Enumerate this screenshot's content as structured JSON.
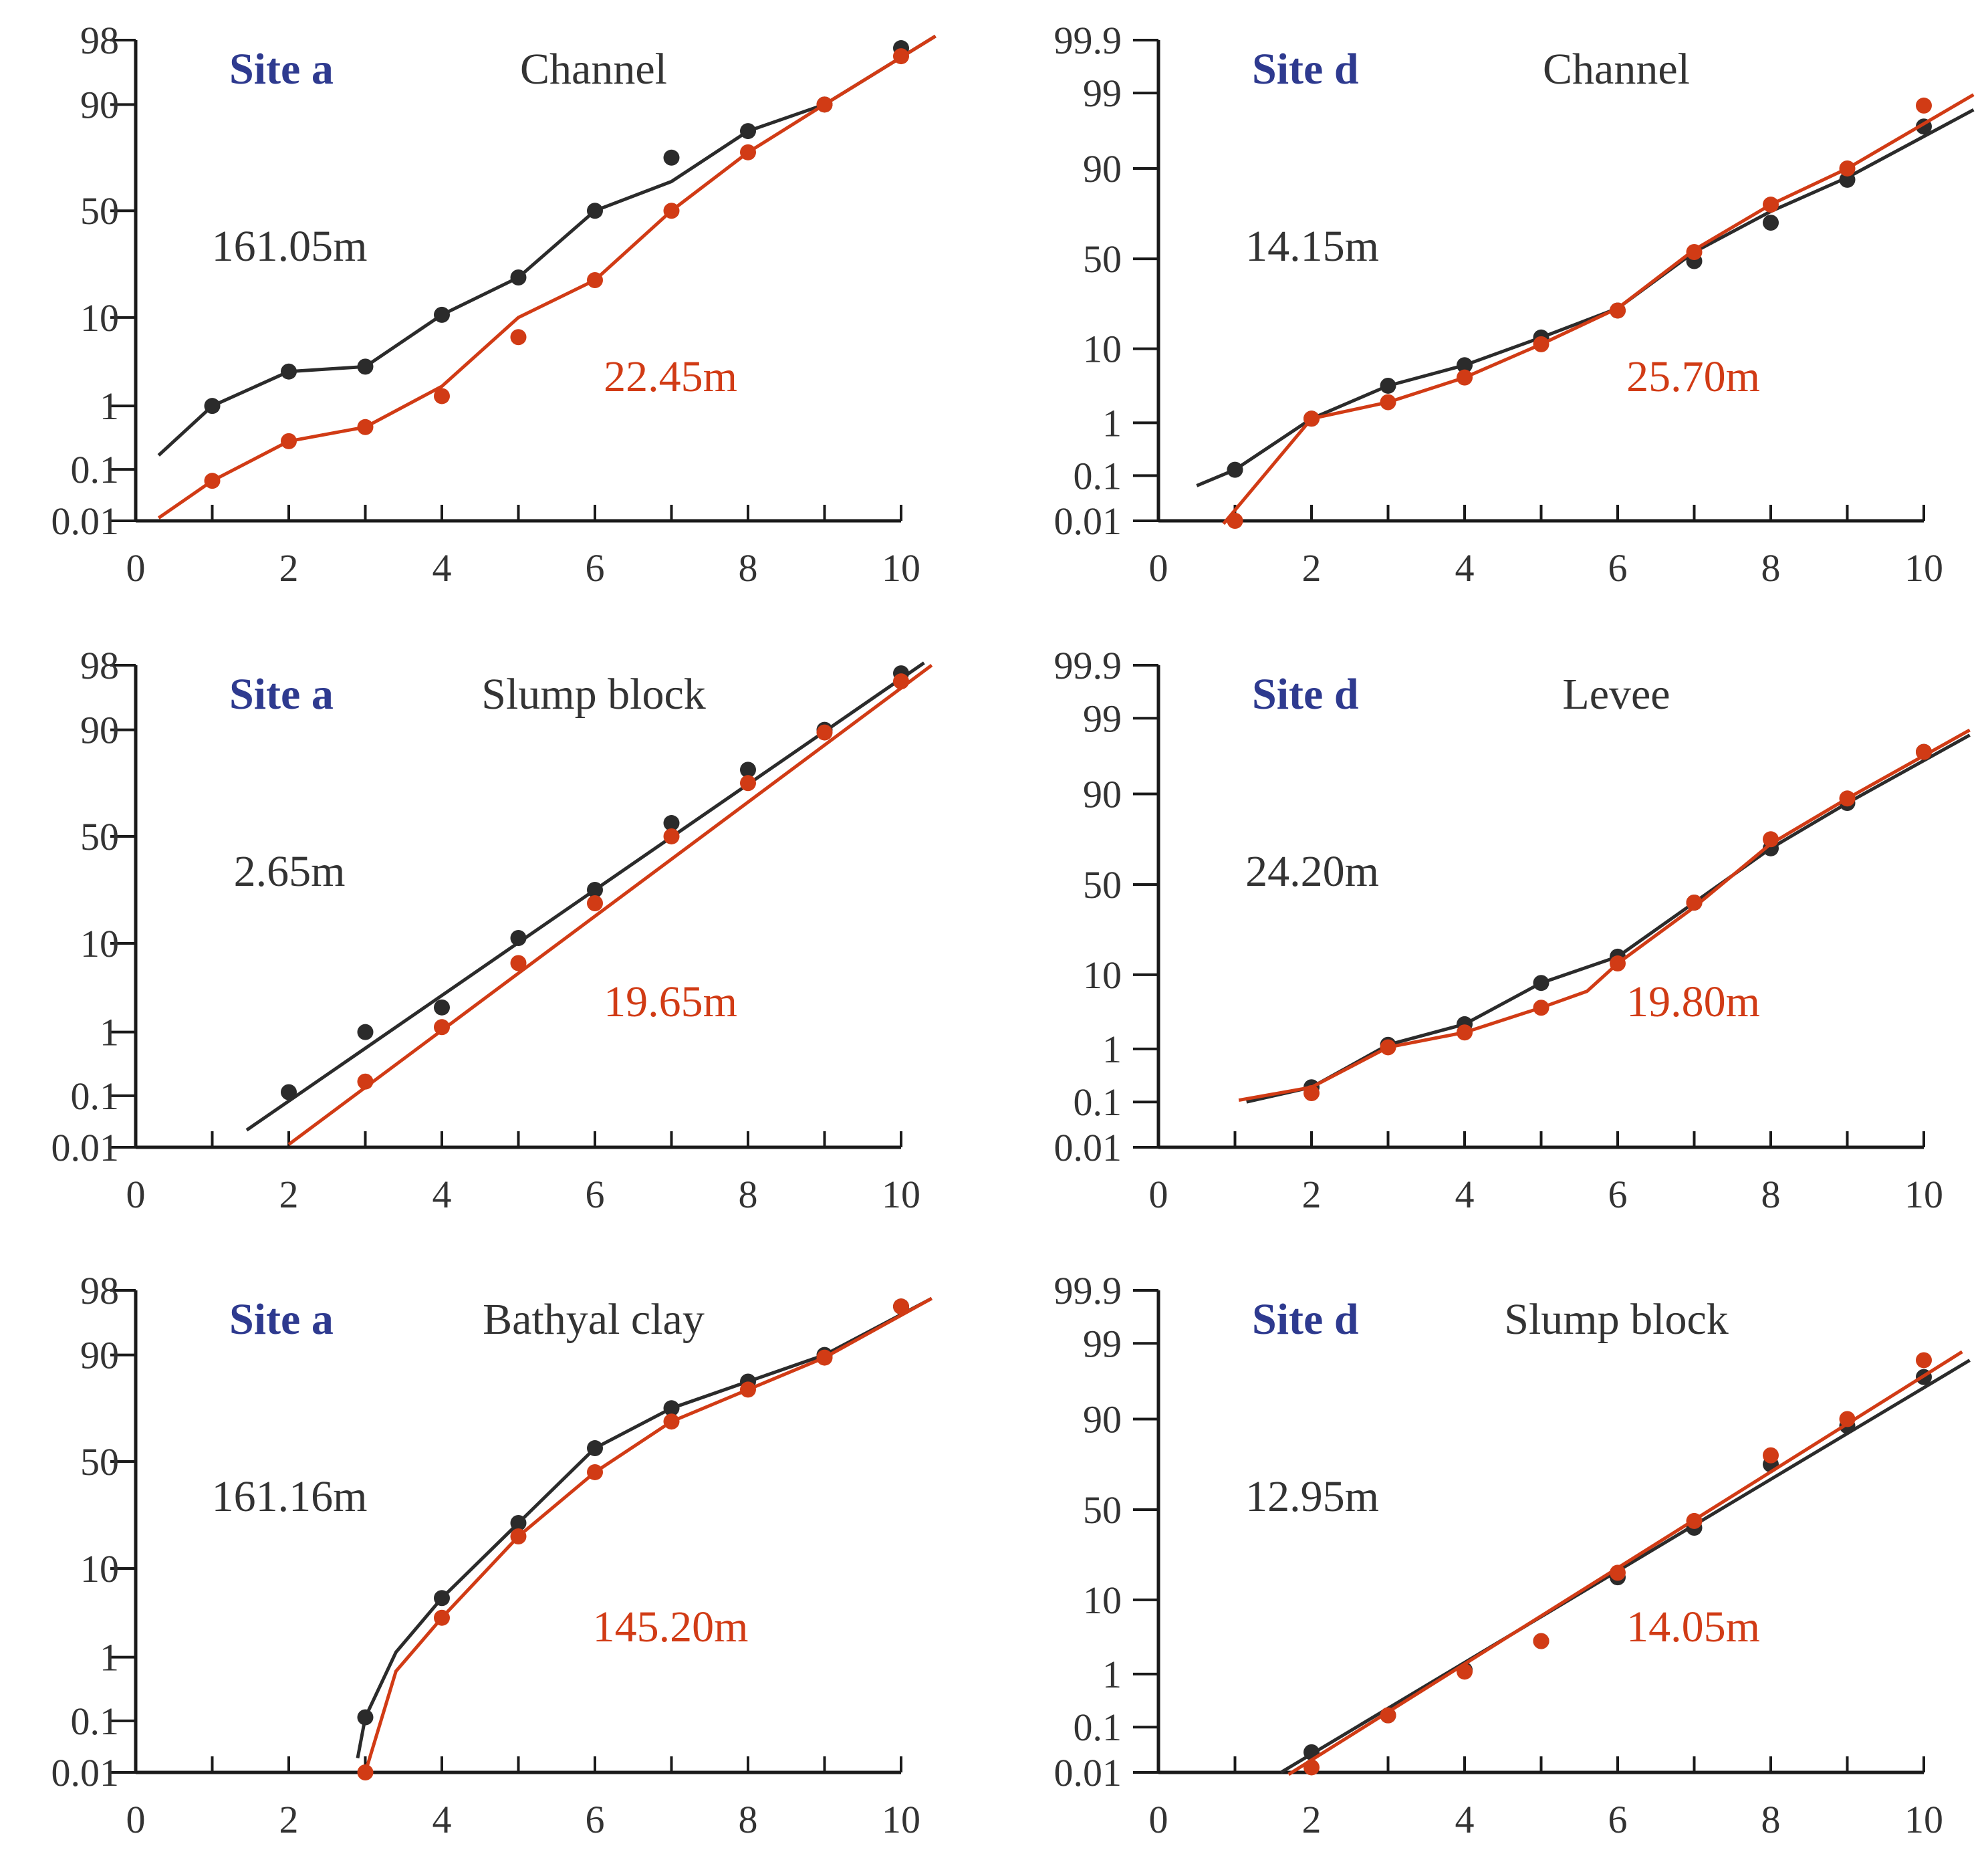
{
  "colors": {
    "dark": "#2b2b2b",
    "red": "#d13b15",
    "site": "#2e3a8f",
    "axis": "#1a1a1a"
  },
  "chart_data": [
    {
      "type": "line",
      "site": "Site a",
      "title": "Channel",
      "xlim": [
        0,
        10
      ],
      "xticks": [
        "0",
        "2",
        "4",
        "6",
        "8",
        "10"
      ],
      "yticks": [
        "98",
        "90",
        "50",
        "10",
        "1",
        "0.1",
        "0.01"
      ],
      "series": [
        {
          "name": "161.05m",
          "color": "dark",
          "x": [
            1,
            2,
            3,
            4,
            5,
            6,
            7,
            8,
            9,
            10
          ],
          "y": [
            1,
            4.5,
            5,
            11,
            25,
            50,
            70,
            80,
            90,
            97
          ],
          "line": [
            [
              0.3,
              0.3
            ],
            [
              1,
              1
            ],
            [
              2,
              4.5
            ],
            [
              3,
              5
            ],
            [
              4,
              11
            ],
            [
              5,
              25
            ],
            [
              6,
              50
            ],
            [
              7,
              61
            ],
            [
              8,
              80
            ],
            [
              9,
              90
            ],
            [
              10.45,
              98.5
            ]
          ]
        },
        {
          "name": "22.45m",
          "color": "red",
          "x": [
            1,
            2,
            3,
            4,
            5,
            6,
            7,
            8,
            9,
            10
          ],
          "y": [
            0.08,
            0.5,
            0.7,
            2,
            8,
            24,
            50,
            72,
            90,
            96
          ],
          "line": [
            [
              0.3,
              0.015
            ],
            [
              1,
              0.08
            ],
            [
              2,
              0.5
            ],
            [
              3,
              0.7
            ],
            [
              4,
              3
            ],
            [
              5,
              10
            ],
            [
              6,
              24
            ],
            [
              7,
              50
            ],
            [
              8,
              72
            ],
            [
              9,
              90
            ],
            [
              10.45,
              98.5
            ]
          ]
        }
      ]
    },
    {
      "type": "line",
      "site": "Site d",
      "title": "Channel",
      "xlim": [
        0,
        10
      ],
      "xticks": [
        "0",
        "2",
        "4",
        "6",
        "8",
        "10"
      ],
      "yticks": [
        "99.9",
        "99",
        "90",
        "50",
        "10",
        "1",
        "0.1",
        "0.01"
      ],
      "series": [
        {
          "name": "14.15m",
          "color": "dark",
          "x": [
            1,
            2,
            3,
            4,
            5,
            6,
            7,
            8,
            9,
            10
          ],
          "y": [
            0.2,
            1.5,
            5.5,
            8,
            15,
            27,
            49,
            66,
            85,
            95
          ],
          "line": [
            [
              0.5,
              0.08
            ],
            [
              1,
              0.2
            ],
            [
              2,
              1.5
            ],
            [
              3,
              5.5
            ],
            [
              4,
              8
            ],
            [
              5,
              15
            ],
            [
              6,
              28
            ],
            [
              7,
              53
            ],
            [
              8,
              71
            ],
            [
              9,
              86
            ],
            [
              10.65,
              97
            ]
          ]
        },
        {
          "name": "25.70m",
          "color": "red",
          "x": [
            1,
            2,
            3,
            4,
            5,
            6,
            7,
            8,
            9,
            10
          ],
          "y": [
            0.01,
            1.5,
            3.5,
            6.5,
            12,
            27,
            53,
            74,
            90,
            97.5
          ],
          "line": [
            [
              0.85,
              0.004
            ],
            [
              2,
              1.5
            ],
            [
              3,
              3.5
            ],
            [
              4,
              6.5
            ],
            [
              5,
              12
            ],
            [
              6,
              28
            ],
            [
              7,
              54
            ],
            [
              8,
              74
            ],
            [
              9,
              90
            ],
            [
              10.65,
              98.8
            ]
          ]
        }
      ]
    },
    {
      "type": "line",
      "site": "Site a",
      "title": "Slump block",
      "xlim": [
        0,
        10
      ],
      "xticks": [
        "0",
        "2",
        "4",
        "6",
        "8",
        "10"
      ],
      "yticks": [
        "98",
        "90",
        "50",
        "10",
        "1",
        "0.1",
        "0.01"
      ],
      "series": [
        {
          "name": "2.65m",
          "color": "dark",
          "x": [
            2,
            3,
            4,
            5,
            6,
            7,
            8,
            9,
            10
          ],
          "y": [
            0.15,
            1,
            3.5,
            12,
            30,
            55,
            75,
            90,
            97
          ],
          "line": [
            [
              1.45,
              0.04
            ],
            [
              10.3,
              98.3
            ]
          ]
        },
        {
          "name": "19.65m",
          "color": "red",
          "x": [
            3,
            4,
            5,
            6,
            7,
            8,
            9,
            10
          ],
          "y": [
            0.3,
            1.5,
            8,
            25,
            50,
            70,
            89,
            96
          ],
          "line": [
            [
              2,
              0.015
            ],
            [
              10.4,
              98
            ]
          ]
        }
      ]
    },
    {
      "type": "line",
      "site": "Site d",
      "title": "Levee",
      "xlim": [
        0,
        10
      ],
      "xticks": [
        "0",
        "2",
        "4",
        "6",
        "8",
        "10"
      ],
      "yticks": [
        "99.9",
        "99",
        "90",
        "50",
        "10",
        "1",
        "0.1",
        "0.01"
      ],
      "series": [
        {
          "name": "24.20m",
          "color": "dark",
          "x": [
            2,
            3,
            4,
            5,
            6,
            7,
            8,
            9,
            10
          ],
          "y": [
            0.35,
            1.5,
            4,
            9,
            18,
            42,
            66,
            86,
            95
          ],
          "line": [
            [
              1.15,
              0.1
            ],
            [
              2,
              0.35
            ],
            [
              3,
              1.5
            ],
            [
              4,
              4
            ],
            [
              5,
              9
            ],
            [
              6,
              18
            ],
            [
              7,
              42
            ],
            [
              8,
              66
            ],
            [
              9,
              86
            ],
            [
              10.6,
              97
            ]
          ]
        },
        {
          "name": "19.80m",
          "color": "red",
          "x": [
            2,
            3,
            4,
            5,
            6,
            7,
            8,
            9,
            10
          ],
          "y": [
            0.25,
            1.2,
            3,
            6,
            15,
            42,
            70,
            88,
            95
          ],
          "line": [
            [
              1.05,
              0.13
            ],
            [
              2,
              0.35
            ],
            [
              3,
              1.2
            ],
            [
              4,
              3
            ],
            [
              5,
              6
            ],
            [
              5.6,
              8
            ],
            [
              6,
              15
            ],
            [
              7,
              40
            ],
            [
              8,
              68
            ],
            [
              9,
              88
            ],
            [
              10.6,
              97.6
            ]
          ]
        }
      ]
    },
    {
      "type": "line",
      "site": "Site a",
      "title": "Bathyal clay",
      "xlim": [
        0,
        10
      ],
      "xticks": [
        "0",
        "2",
        "4",
        "6",
        "8",
        "10"
      ],
      "yticks": [
        "98",
        "90",
        "50",
        "10",
        "1",
        "0.1",
        "0.01"
      ],
      "series": [
        {
          "name": "161.16m",
          "color": "dark",
          "x": [
            3,
            4,
            5,
            6,
            7,
            8,
            9,
            10
          ],
          "y": [
            0.15,
            7,
            27,
            55,
            70,
            80,
            90,
            96
          ],
          "line": [
            [
              2.9,
              0.035
            ],
            [
              3,
              0.15
            ],
            [
              3.4,
              1.5
            ],
            [
              4,
              7
            ],
            [
              5,
              27
            ],
            [
              6,
              55
            ],
            [
              7,
              70
            ],
            [
              8,
              80
            ],
            [
              9,
              90
            ],
            [
              10.4,
              97
            ]
          ]
        },
        {
          "name": "145.20m",
          "color": "red",
          "x": [
            3,
            4,
            5,
            6,
            7,
            8,
            9,
            10
          ],
          "y": [
            0.01,
            5,
            22,
            46,
            65,
            77,
            89,
            96
          ],
          "line": [
            [
              2.95,
              0.005
            ],
            [
              3,
              0.01
            ],
            [
              3.4,
              0.8
            ],
            [
              4,
              5
            ],
            [
              5,
              22
            ],
            [
              6,
              46
            ],
            [
              7,
              65
            ],
            [
              8,
              77
            ],
            [
              9,
              89
            ],
            [
              10.4,
              97
            ]
          ]
        }
      ]
    },
    {
      "type": "line",
      "site": "Site d",
      "title": "Slump block",
      "xlim": [
        0,
        10
      ],
      "xticks": [
        "0",
        "2",
        "4",
        "6",
        "8",
        "10"
      ],
      "yticks": [
        "99.9",
        "99",
        "90",
        "50",
        "10",
        "1",
        "0.1",
        "0.01"
      ],
      "series": [
        {
          "name": "12.95m",
          "color": "dark",
          "x": [
            2,
            3,
            4,
            5,
            6,
            7,
            8,
            9,
            10
          ],
          "y": [
            0.05,
            0.3,
            1.5,
            5,
            20,
            42,
            70,
            87,
            95
          ],
          "line": [
            [
              1.6,
              0.01
            ],
            [
              10.6,
              97
            ]
          ]
        },
        {
          "name": "14.05m",
          "color": "red",
          "x": [
            2,
            3,
            4,
            5,
            6,
            7,
            8,
            9,
            10
          ],
          "y": [
            0.02,
            0.3,
            1.3,
            5,
            22,
            45,
            74,
            90,
            97
          ],
          "line": [
            [
              1.7,
              0.006
            ],
            [
              10.5,
              98
            ]
          ]
        }
      ]
    }
  ]
}
